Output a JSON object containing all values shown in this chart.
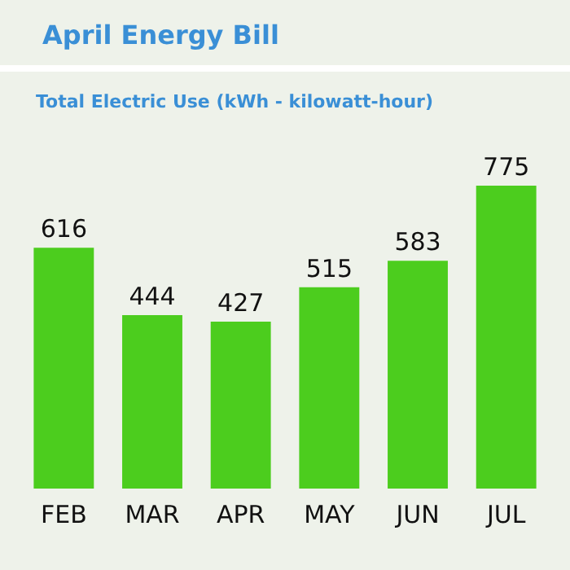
{
  "chart_data": {
    "type": "bar",
    "title": "April Energy Bill",
    "subtitle": "Total Electric Use (kWh - kilowatt-hour)",
    "categories": [
      "FEB",
      "MAR",
      "APR",
      "MAY",
      "JUN",
      "JUL"
    ],
    "values": [
      616,
      444,
      427,
      515,
      583,
      775
    ],
    "color": "#4ccd1e",
    "data_labels": true,
    "grid": false,
    "legend": false,
    "tick_labels": "x"
  }
}
